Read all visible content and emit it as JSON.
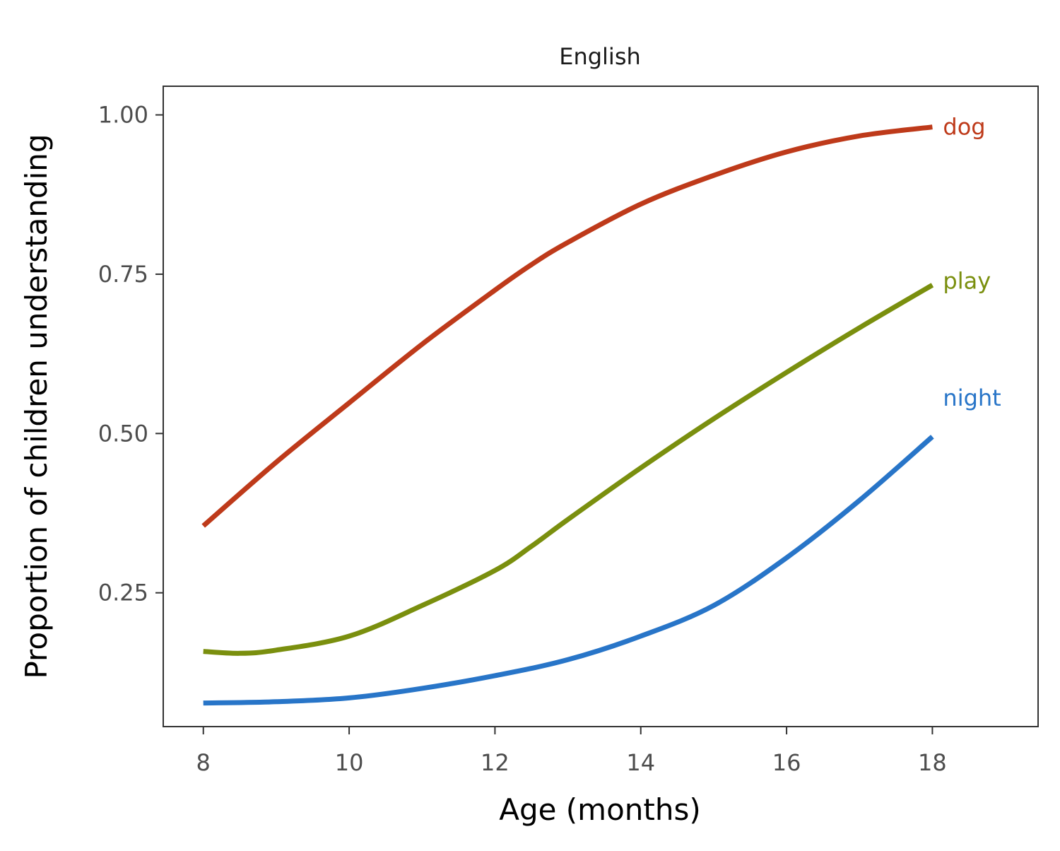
{
  "chart_data": {
    "type": "line",
    "facet_title": "English",
    "xlabel": "Age (months)",
    "ylabel": "Proportion of children understanding",
    "xlim": [
      7.45,
      19.45
    ],
    "ylim": [
      0.04,
      1.045
    ],
    "x_ticks": [
      8,
      10,
      12,
      14,
      16,
      18
    ],
    "y_ticks": [
      0.25,
      0.5,
      0.75,
      1.0
    ],
    "x_tick_labels": [
      "8",
      "10",
      "12",
      "14",
      "16",
      "18"
    ],
    "y_tick_labels": [
      "0.25",
      "0.50",
      "0.75",
      "1.00"
    ],
    "grid": false,
    "legend": "direct labels at line ends",
    "series": [
      {
        "name": "dog",
        "color": "#BE3A1A",
        "x": [
          8,
          9,
          10,
          11,
          12,
          12.5,
          13,
          14,
          15,
          16,
          17,
          18
        ],
        "y": [
          0.355,
          0.455,
          0.548,
          0.64,
          0.725,
          0.765,
          0.8,
          0.86,
          0.905,
          0.942,
          0.967,
          0.981
        ]
      },
      {
        "name": "play",
        "color": "#7A8F0E",
        "x": [
          8,
          8.5,
          9,
          10,
          11,
          12,
          12.5,
          13,
          14,
          15,
          16,
          17,
          18
        ],
        "y": [
          0.158,
          0.155,
          0.16,
          0.182,
          0.23,
          0.285,
          0.323,
          0.365,
          0.446,
          0.523,
          0.596,
          0.666,
          0.733
        ]
      },
      {
        "name": "night",
        "color": "#2875C8",
        "x": [
          8,
          9,
          10,
          11,
          12,
          13,
          14,
          15,
          16,
          17,
          18
        ],
        "y": [
          0.077,
          0.079,
          0.085,
          0.1,
          0.12,
          0.145,
          0.182,
          0.23,
          0.305,
          0.395,
          0.495
        ]
      }
    ]
  }
}
